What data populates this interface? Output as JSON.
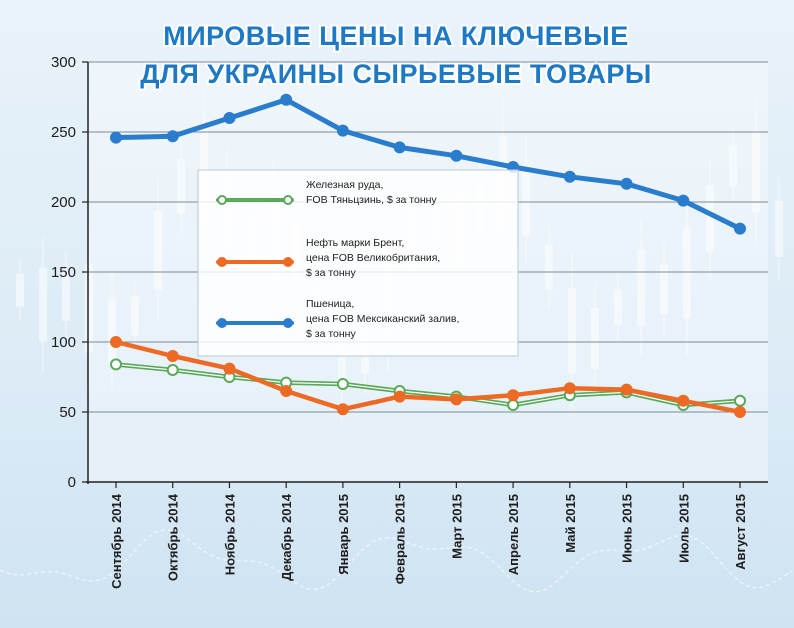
{
  "chart_data": {
    "type": "line",
    "title_lines": [
      "МИРОВЫЕ ЦЕНЫ НА КЛЮЧЕВЫЕ",
      "ДЛЯ УКРАИНЫ СЫРЬЕВЫЕ ТОВАРЫ"
    ],
    "categories": [
      "Сентябрь 2014",
      "Октябрь 2014",
      "Ноябрь 2014",
      "Декабрь 2014",
      "Январь 2015",
      "Февраль 2015",
      "Март 2015",
      "Апрель 2015",
      "Май 2015",
      "Июнь 2015",
      "Июль 2015",
      "Август 2015"
    ],
    "ylim": [
      0,
      300
    ],
    "yticks": [
      "0",
      "50",
      "100",
      "150",
      "200",
      "250",
      "300"
    ],
    "grid": true,
    "legend_placement": "center-top",
    "series": [
      {
        "name_lines": [
          "Железная руда,",
          "FOB Тяньцзинь, $ за тонну"
        ],
        "color": "#5aa85a",
        "values": [
          84,
          80,
          75,
          71,
          70,
          65,
          61,
          55,
          62,
          64,
          55,
          58
        ]
      },
      {
        "name_lines": [
          "Нефть марки Брент,",
          "цена FOB Великобритания,",
          "$ за тонну"
        ],
        "color": "#ec6a24",
        "values": [
          100,
          90,
          81,
          65,
          52,
          61,
          59,
          62,
          67,
          66,
          58,
          50
        ]
      },
      {
        "name_lines": [
          "Пшеница,",
          "цена FOB Мексиканский залив,",
          "$ за тонну"
        ],
        "color": "#2a7ccc",
        "values": [
          246,
          247,
          260,
          273,
          251,
          239,
          233,
          225,
          218,
          213,
          201,
          181
        ]
      }
    ]
  }
}
